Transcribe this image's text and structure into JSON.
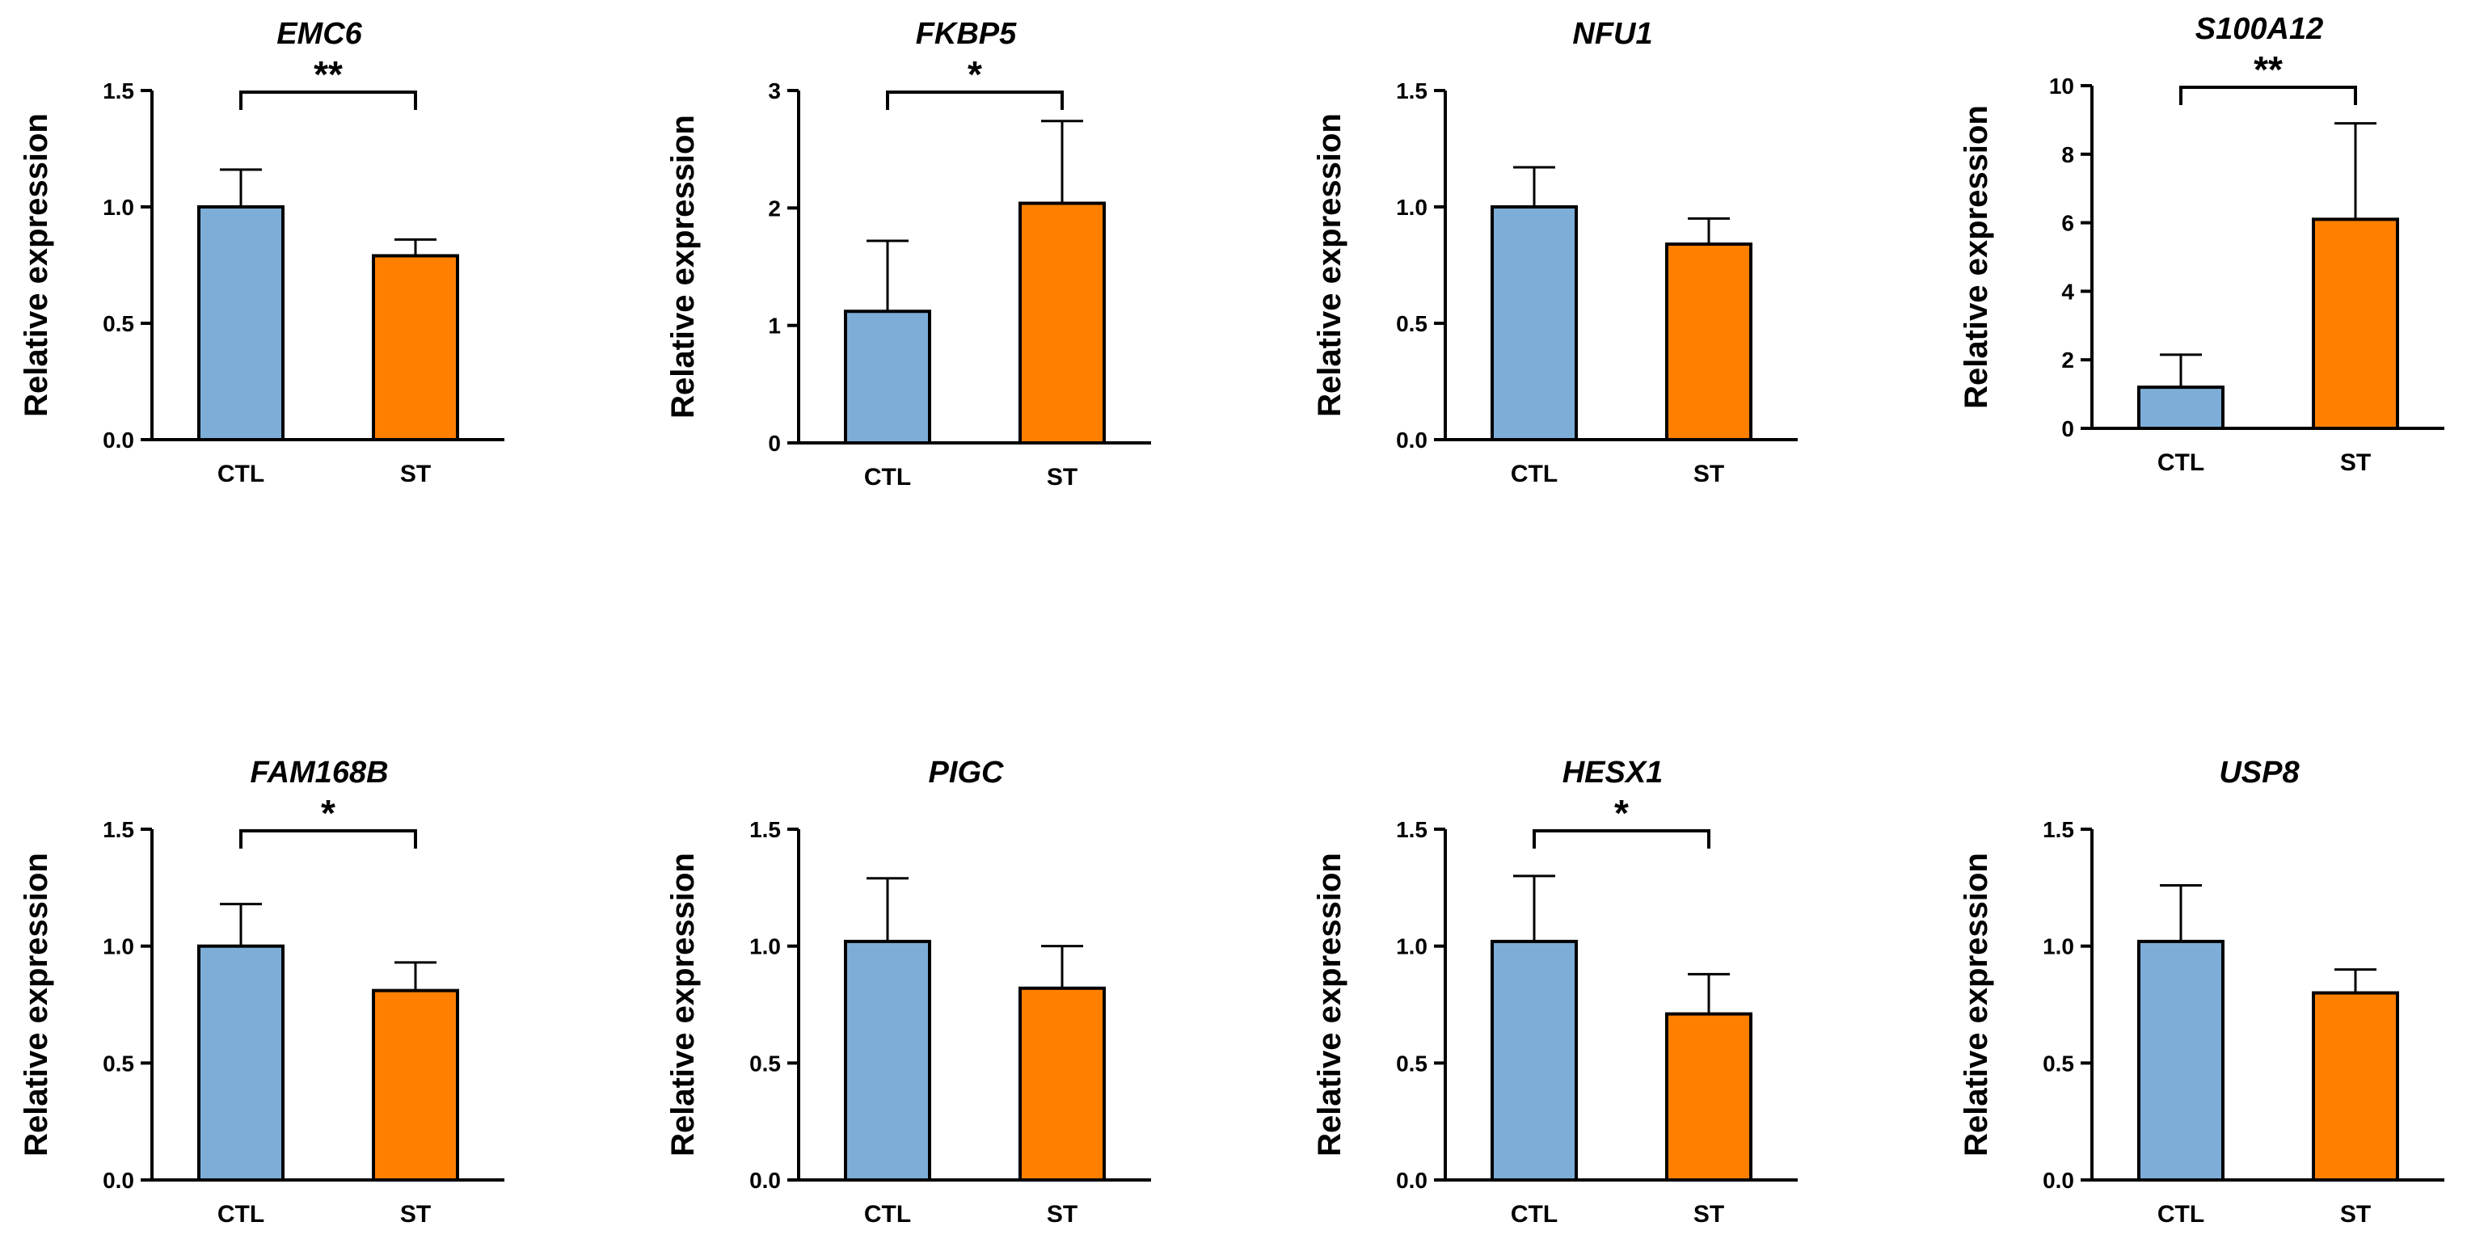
{
  "colors": {
    "ctl": "#7daed8",
    "st": "#ff8000",
    "axis": "#000000"
  },
  "chart_data": [
    {
      "type": "bar",
      "title": "EMC6",
      "ylabel": "Relative expression",
      "categories": [
        "CTL",
        "ST"
      ],
      "values": [
        1.0,
        0.79
      ],
      "errors": [
        0.16,
        0.07
      ],
      "ylim": [
        0,
        1.5
      ],
      "ticks": [
        0.0,
        0.5,
        1.0,
        1.5
      ],
      "tick_labels": [
        "0.0",
        "0.5",
        "1.0",
        "1.5"
      ],
      "significance": "**"
    },
    {
      "type": "bar",
      "title": "FKBP5",
      "ylabel": "Relative expression",
      "categories": [
        "CTL",
        "ST"
      ],
      "values": [
        1.12,
        2.04
      ],
      "errors": [
        0.6,
        0.7
      ],
      "ylim": [
        0,
        3
      ],
      "ticks": [
        0,
        1,
        2,
        3
      ],
      "tick_labels": [
        "0",
        "1",
        "2",
        "3"
      ],
      "significance": "*"
    },
    {
      "type": "bar",
      "title": "NFU1",
      "ylabel": "Relative expression",
      "categories": [
        "CTL",
        "ST"
      ],
      "values": [
        1.0,
        0.84
      ],
      "errors": [
        0.17,
        0.11
      ],
      "ylim": [
        0,
        1.5
      ],
      "ticks": [
        0.0,
        0.5,
        1.0,
        1.5
      ],
      "tick_labels": [
        "0.0",
        "0.5",
        "1.0",
        "1.5"
      ],
      "significance": ""
    },
    {
      "type": "bar",
      "title": "S100A12",
      "ylabel": "Relative expression",
      "categories": [
        "CTL",
        "ST"
      ],
      "values": [
        1.2,
        6.1
      ],
      "errors": [
        0.95,
        2.8
      ],
      "ylim": [
        0,
        10
      ],
      "ticks": [
        0,
        2,
        4,
        6,
        8,
        10
      ],
      "tick_labels": [
        "0",
        "2",
        "4",
        "6",
        "8",
        "10"
      ],
      "significance": "**"
    },
    {
      "type": "bar",
      "title": "FAM168B",
      "ylabel": "Relative expression",
      "categories": [
        "CTL",
        "ST"
      ],
      "values": [
        1.0,
        0.81
      ],
      "errors": [
        0.18,
        0.12
      ],
      "ylim": [
        0,
        1.5
      ],
      "ticks": [
        0.0,
        0.5,
        1.0,
        1.5
      ],
      "tick_labels": [
        "0.0",
        "0.5",
        "1.0",
        "1.5"
      ],
      "significance": "*"
    },
    {
      "type": "bar",
      "title": "PIGC",
      "ylabel": "Relative expression",
      "categories": [
        "CTL",
        "ST"
      ],
      "values": [
        1.02,
        0.82
      ],
      "errors": [
        0.27,
        0.18
      ],
      "ylim": [
        0,
        1.5
      ],
      "ticks": [
        0.0,
        0.5,
        1.0,
        1.5
      ],
      "tick_labels": [
        "0.0",
        "0.5",
        "1.0",
        "1.5"
      ],
      "significance": ""
    },
    {
      "type": "bar",
      "title": "HESX1",
      "ylabel": "Relative expression",
      "categories": [
        "CTL",
        "ST"
      ],
      "values": [
        1.02,
        0.71
      ],
      "errors": [
        0.28,
        0.17
      ],
      "ylim": [
        0,
        1.5
      ],
      "ticks": [
        0.0,
        0.5,
        1.0,
        1.5
      ],
      "tick_labels": [
        "0.0",
        "0.5",
        "1.0",
        "1.5"
      ],
      "significance": "*"
    },
    {
      "type": "bar",
      "title": "USP8",
      "ylabel": "Relative expression",
      "categories": [
        "CTL",
        "ST"
      ],
      "values": [
        1.02,
        0.8
      ],
      "errors": [
        0.24,
        0.1
      ],
      "ylim": [
        0,
        1.5
      ],
      "ticks": [
        0.0,
        0.5,
        1.0,
        1.5
      ],
      "tick_labels": [
        "0.0",
        "0.5",
        "1.0",
        "1.5"
      ],
      "significance": ""
    }
  ]
}
